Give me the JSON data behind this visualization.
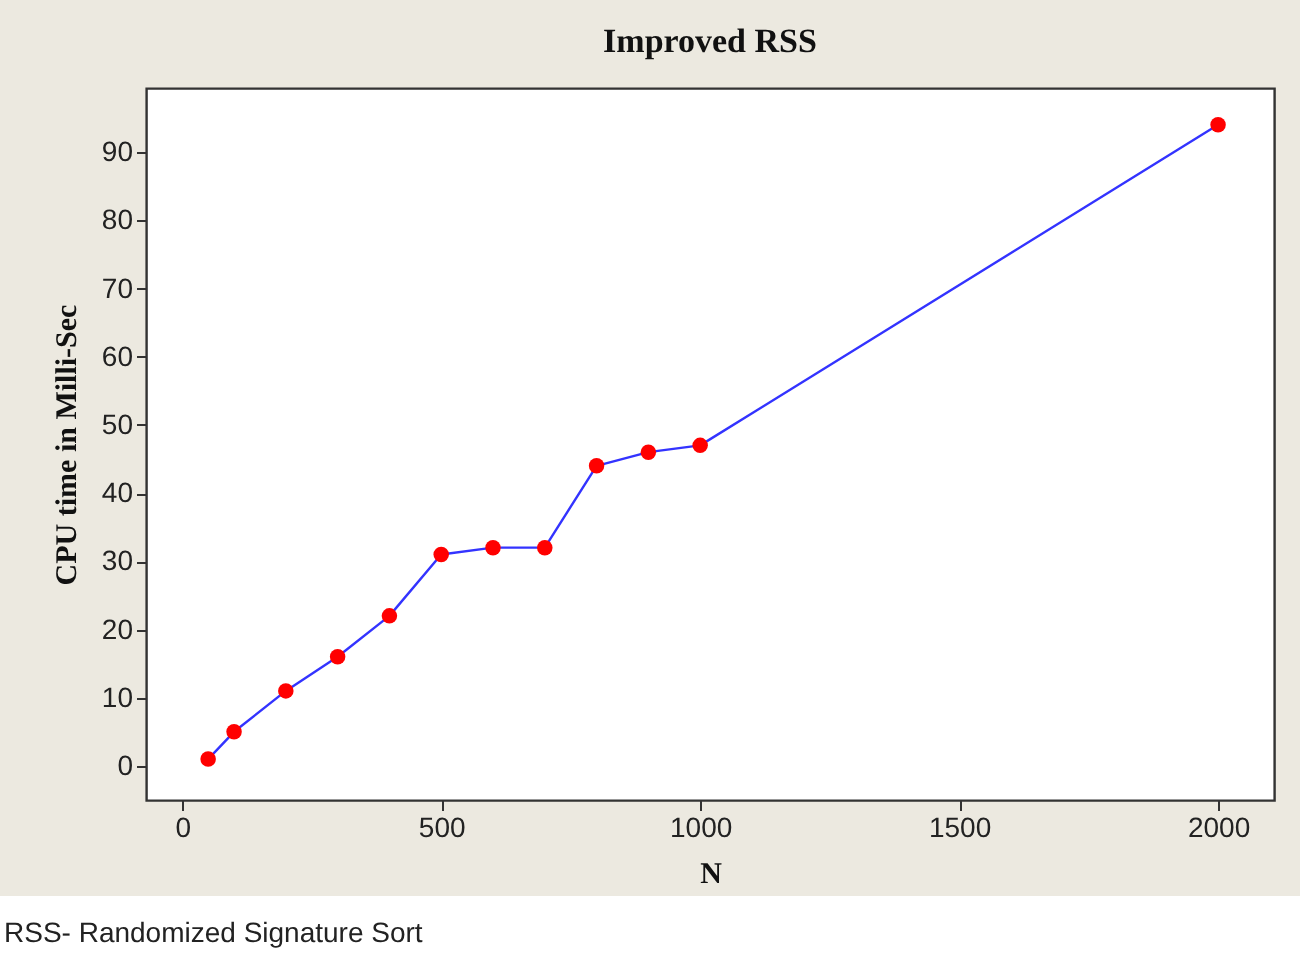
{
  "chart_data": {
    "type": "line",
    "title": "Improved RSS",
    "xlabel": "N",
    "ylabel": "CPU time in Milli-Sec",
    "x": [
      50,
      100,
      200,
      300,
      400,
      500,
      600,
      700,
      800,
      900,
      1000,
      2000
    ],
    "series": [
      {
        "color": "#3333ff",
        "values": [
          1,
          5,
          11,
          16,
          22,
          31,
          32,
          32,
          44,
          46,
          47,
          94
        ]
      },
      {
        "type": "scatter",
        "color": "#ff0000",
        "values": [
          1,
          5,
          11,
          16,
          22,
          31,
          32,
          32,
          44,
          46,
          47,
          94
        ]
      }
    ],
    "xlim": [
      -70,
      2108
    ],
    "xticks": [
      0,
      500,
      1000,
      1500,
      2000
    ],
    "ylim": [
      -5,
      99.4
    ],
    "yticks": [
      0,
      10,
      20,
      30,
      40,
      50,
      60,
      70,
      80,
      90
    ],
    "grid": false,
    "annotations": [
      "RSS- Randomized Signature Sort"
    ]
  }
}
